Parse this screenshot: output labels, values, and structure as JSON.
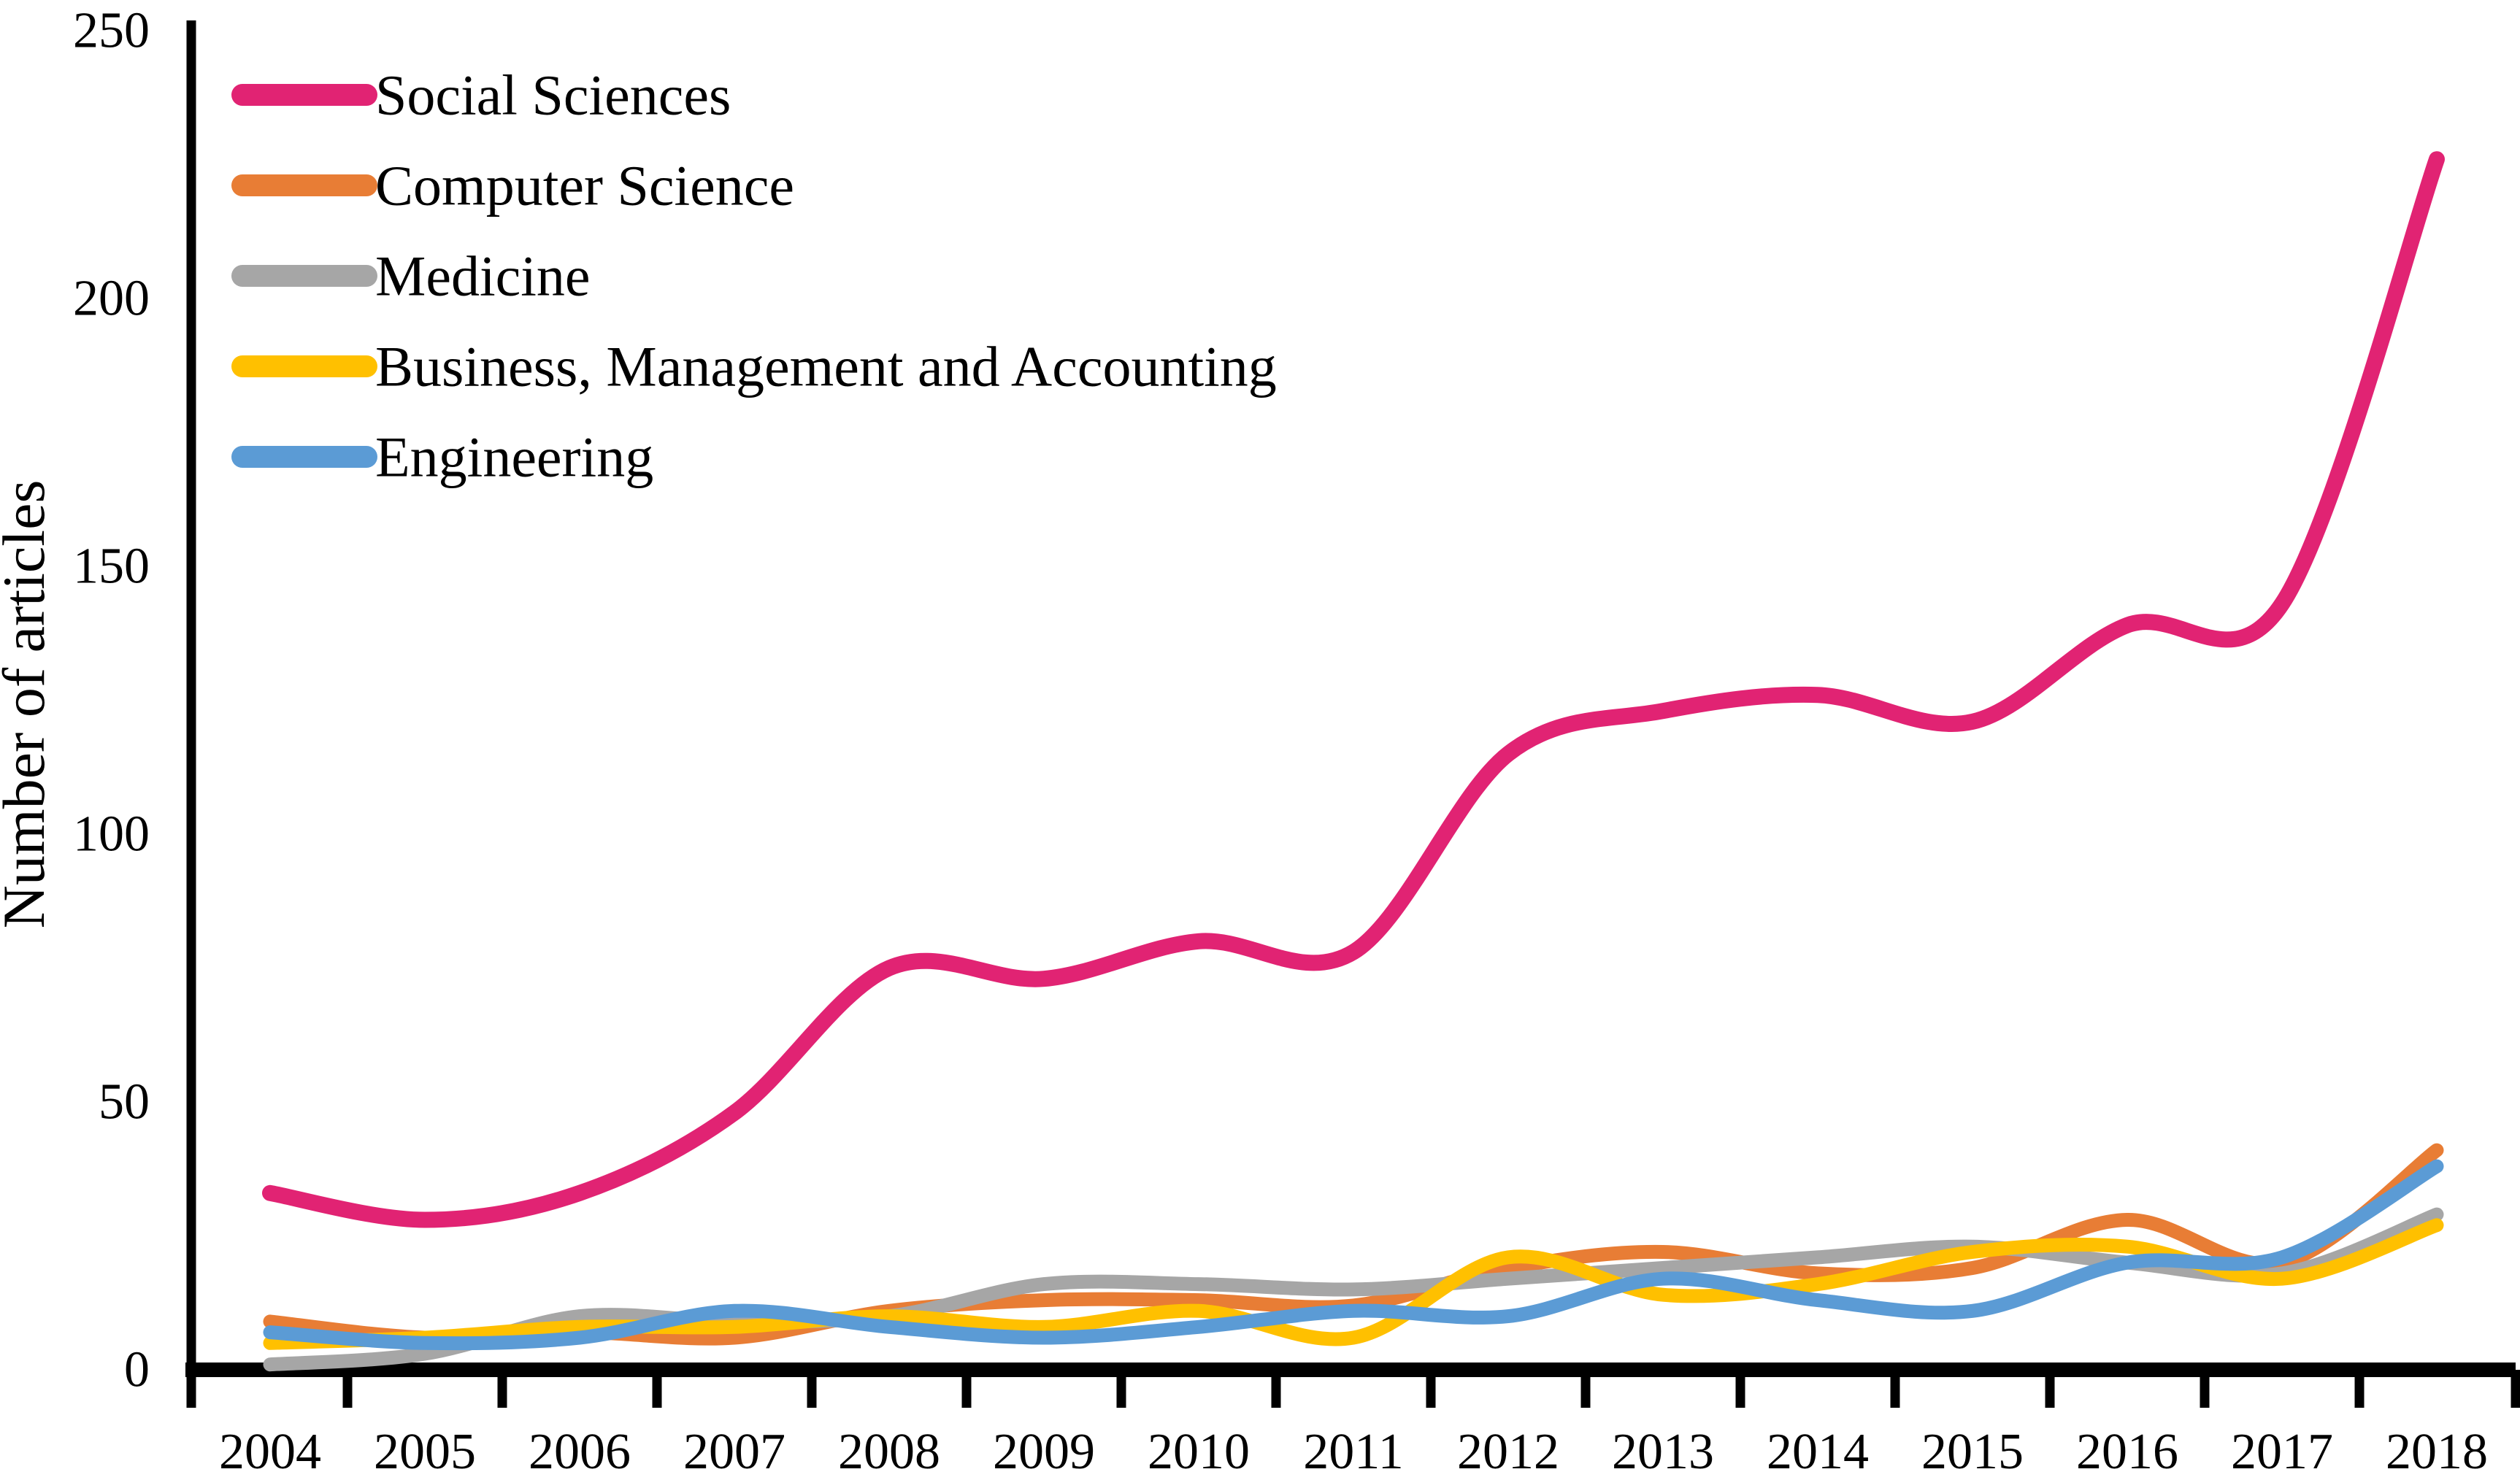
{
  "chart_data": {
    "type": "line",
    "title": "",
    "xlabel": "",
    "ylabel": "Number of articles",
    "categories": [
      "2004",
      "2005",
      "2006",
      "2007",
      "2008",
      "2009",
      "2010",
      "2011",
      "2012",
      "2013",
      "2014",
      "2015",
      "2016",
      "2017",
      "2018"
    ],
    "y_ticks": [
      "0",
      "50",
      "100",
      "150",
      "200",
      "250"
    ],
    "ylim": [
      0,
      250
    ],
    "grid": false,
    "legend_position": "top-left",
    "line_style": "smooth",
    "axis_color": "#000000",
    "series": [
      {
        "name": "Social Sciences",
        "color": "#E12373",
        "values": [
          33,
          28,
          33,
          48,
          75,
          73,
          80,
          78,
          115,
          123,
          126,
          121,
          139,
          143,
          226
        ]
      },
      {
        "name": "Computer Science",
        "color": "#E87D35",
        "values": [
          9,
          6,
          7,
          6,
          11,
          13,
          13,
          12,
          19,
          22,
          18,
          19,
          28,
          20,
          41
        ]
      },
      {
        "name": "Medicine",
        "color": "#A6A6A6",
        "values": [
          1,
          3,
          10,
          9,
          10,
          16,
          16,
          15,
          17,
          19,
          21,
          23,
          20,
          18,
          29
        ]
      },
      {
        "name": "Business, Management and Accounting",
        "color": "#FFC000",
        "values": [
          5,
          6,
          8,
          8,
          10,
          8,
          11,
          6,
          21,
          14,
          16,
          22,
          23,
          17,
          27
        ]
      },
      {
        "name": "Engineering",
        "color": "#5B9BD5",
        "values": [
          7,
          5,
          6,
          11,
          8,
          6,
          8,
          11,
          10,
          17,
          13,
          11,
          20,
          21,
          38
        ]
      }
    ]
  }
}
